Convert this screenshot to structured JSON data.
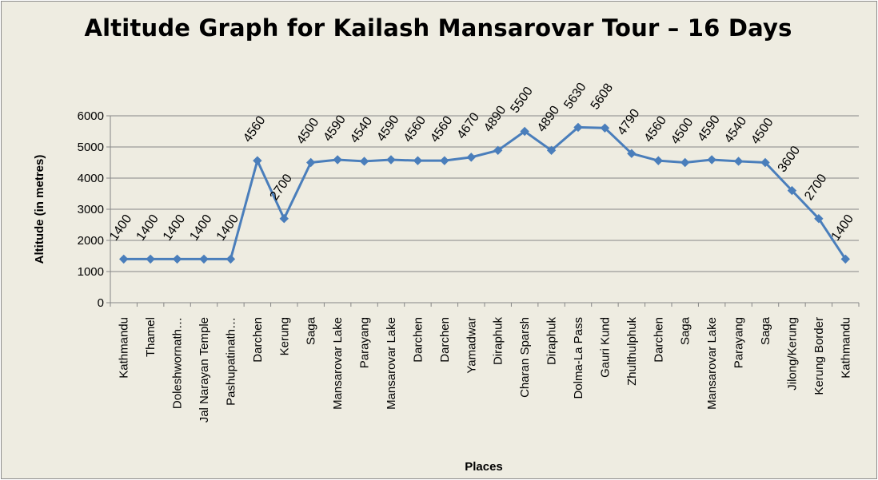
{
  "chart_data": {
    "type": "line",
    "title": "Altitude Graph for Kailash Mansarovar Tour – 16 Days",
    "xlabel": "Places",
    "ylabel": "Altitude (in metres)",
    "ylim": [
      0,
      6000
    ],
    "yticks": [
      0,
      1000,
      2000,
      3000,
      4000,
      5000,
      6000
    ],
    "grid": true,
    "legend": "none",
    "categories": [
      "Kathmandu",
      "Thamel",
      "Doleshwornath…",
      "Jal Narayan Temple",
      "Pashupatinath…",
      "Darchen",
      "Kerung",
      "Saga",
      "Mansarovar Lake",
      "Parayang",
      "Mansarovar Lake",
      "Darchen",
      "Darchen",
      "Yamadwar",
      "Diraphuk",
      "Charan Sparsh",
      "Diraphuk",
      "Dolma-La Pass",
      "Gauri Kund",
      "Zhulthulphuk",
      "Darchen",
      "Saga",
      "Mansarovar Lake",
      "Parayang",
      "Saga",
      "Jilong/Kerung",
      "Kerung Border",
      "Kathmandu"
    ],
    "series": [
      {
        "values": [
          1400,
          1400,
          1400,
          1400,
          1400,
          4560,
          2700,
          4500,
          4590,
          4540,
          4590,
          4560,
          4560,
          4670,
          4890,
          5500,
          4890,
          5630,
          5608,
          4790,
          4560,
          4500,
          4590,
          4540,
          4500,
          3600,
          2700,
          1400
        ],
        "color": "#4a7ebb",
        "marker": "diamond"
      }
    ],
    "colors": {
      "background": "#eeece1",
      "gridline": "#868686",
      "line": "#4a7ebb"
    }
  }
}
